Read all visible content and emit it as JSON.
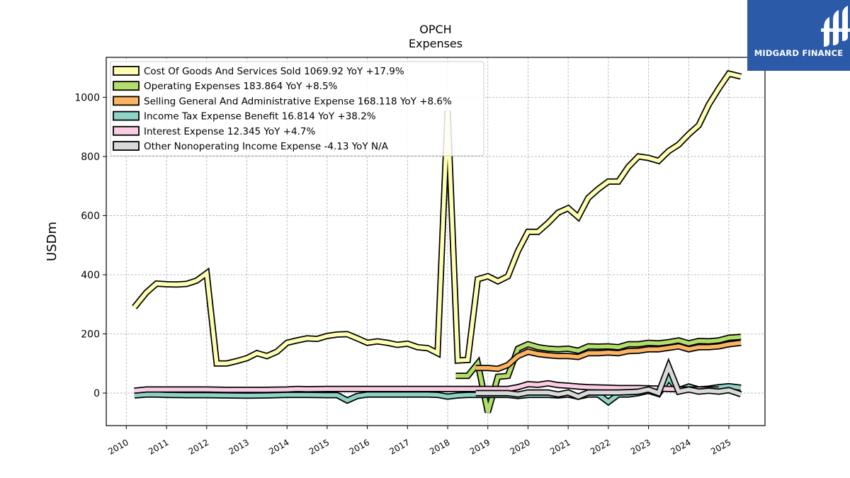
{
  "brand": {
    "name": "MIDGARD FINANCE",
    "color": "#2b5aa8"
  },
  "chart_data": {
    "type": "line",
    "title": "OPCH",
    "subtitle": "Expenses",
    "ylabel": "USDm",
    "xlabel": "",
    "xlim": [
      2009.5,
      2025.9
    ],
    "ylim": [
      -110,
      1135
    ],
    "x_ticks": [
      2010,
      2011,
      2012,
      2013,
      2014,
      2015,
      2016,
      2017,
      2018,
      2019,
      2020,
      2021,
      2022,
      2023,
      2024,
      2025
    ],
    "x_tick_labels": [
      "2010",
      "2011",
      "2012",
      "2013",
      "2014",
      "2015",
      "2016",
      "2017",
      "2018",
      "2019",
      "2020",
      "2021",
      "2022",
      "2023",
      "2024",
      "2025"
    ],
    "y_ticks": [
      0,
      200,
      400,
      600,
      800,
      1000
    ],
    "y_tick_labels": [
      "0",
      "200",
      "400",
      "600",
      "800",
      "1000"
    ],
    "grid": true,
    "legend_position": "top-left",
    "series": [
      {
        "name": "Cost Of Goods And Services Sold",
        "legend": "Cost Of Goods And Services Sold  1069.92 YoY +17.9%",
        "color": "#ffffb3",
        "points": [
          [
            2010.2,
            290
          ],
          [
            2010.5,
            340
          ],
          [
            2010.75,
            370
          ],
          [
            2011.0,
            368
          ],
          [
            2011.25,
            367
          ],
          [
            2011.5,
            369
          ],
          [
            2011.75,
            380
          ],
          [
            2012.0,
            405
          ],
          [
            2012.25,
            100
          ],
          [
            2012.5,
            100
          ],
          [
            2012.75,
            108
          ],
          [
            2013.0,
            118
          ],
          [
            2013.25,
            135
          ],
          [
            2013.5,
            125
          ],
          [
            2013.75,
            140
          ],
          [
            2014.0,
            170
          ],
          [
            2014.25,
            178
          ],
          [
            2014.5,
            185
          ],
          [
            2014.75,
            183
          ],
          [
            2015.0,
            193
          ],
          [
            2015.25,
            198
          ],
          [
            2015.5,
            199
          ],
          [
            2015.75,
            185
          ],
          [
            2016.0,
            170
          ],
          [
            2016.25,
            175
          ],
          [
            2016.5,
            170
          ],
          [
            2016.75,
            163
          ],
          [
            2017.0,
            167
          ],
          [
            2017.25,
            155
          ],
          [
            2017.5,
            152
          ],
          [
            2017.75,
            135
          ],
          [
            2018.0,
            955
          ],
          [
            2018.25,
            110
          ],
          [
            2018.5,
            112
          ],
          [
            2018.75,
            385
          ],
          [
            2019.0,
            395
          ],
          [
            2019.25,
            378
          ],
          [
            2019.5,
            395
          ],
          [
            2019.75,
            480
          ],
          [
            2020.0,
            545
          ],
          [
            2020.25,
            545
          ],
          [
            2020.5,
            575
          ],
          [
            2020.75,
            610
          ],
          [
            2021.0,
            625
          ],
          [
            2021.25,
            595
          ],
          [
            2021.5,
            660
          ],
          [
            2021.75,
            690
          ],
          [
            2022.0,
            715
          ],
          [
            2022.25,
            715
          ],
          [
            2022.5,
            765
          ],
          [
            2022.75,
            800
          ],
          [
            2023.0,
            795
          ],
          [
            2023.25,
            785
          ],
          [
            2023.5,
            818
          ],
          [
            2023.75,
            840
          ],
          [
            2024.0,
            875
          ],
          [
            2024.25,
            905
          ],
          [
            2024.5,
            975
          ],
          [
            2024.75,
            1030
          ],
          [
            2025.0,
            1080
          ],
          [
            2025.3,
            1070
          ]
        ]
      },
      {
        "name": "Operating Expenses",
        "legend": "Operating Expenses  183.864 YoY +8.5%",
        "color": "#b3de69",
        "points": [
          [
            2018.2,
            58
          ],
          [
            2018.5,
            58
          ],
          [
            2018.75,
            100
          ],
          [
            2019.0,
            -65
          ],
          [
            2019.25,
            55
          ],
          [
            2019.5,
            58
          ],
          [
            2019.75,
            150
          ],
          [
            2020.0,
            165
          ],
          [
            2020.25,
            155
          ],
          [
            2020.5,
            150
          ],
          [
            2020.75,
            148
          ],
          [
            2021.0,
            150
          ],
          [
            2021.25,
            143
          ],
          [
            2021.5,
            158
          ],
          [
            2021.75,
            157
          ],
          [
            2022.0,
            158
          ],
          [
            2022.25,
            155
          ],
          [
            2022.5,
            165
          ],
          [
            2022.75,
            165
          ],
          [
            2023.0,
            170
          ],
          [
            2023.25,
            168
          ],
          [
            2023.5,
            172
          ],
          [
            2023.75,
            178
          ],
          [
            2024.0,
            168
          ],
          [
            2024.25,
            176
          ],
          [
            2024.5,
            175
          ],
          [
            2024.75,
            178
          ],
          [
            2025.0,
            187
          ],
          [
            2025.3,
            190
          ]
        ]
      },
      {
        "name": "Selling General And Administrative Expense",
        "legend": "Selling General And Administrative Expense  168.118 YoY +8.6%",
        "color": "#fdb462",
        "points": [
          [
            2018.7,
            85
          ],
          [
            2019.0,
            85
          ],
          [
            2019.25,
            82
          ],
          [
            2019.5,
            95
          ],
          [
            2019.75,
            125
          ],
          [
            2020.0,
            140
          ],
          [
            2020.25,
            132
          ],
          [
            2020.5,
            128
          ],
          [
            2020.75,
            125
          ],
          [
            2021.0,
            125
          ],
          [
            2021.25,
            122
          ],
          [
            2021.5,
            135
          ],
          [
            2021.75,
            135
          ],
          [
            2022.0,
            137
          ],
          [
            2022.25,
            135
          ],
          [
            2022.5,
            142
          ],
          [
            2022.75,
            143
          ],
          [
            2023.0,
            148
          ],
          [
            2023.25,
            148
          ],
          [
            2023.5,
            153
          ],
          [
            2023.75,
            158
          ],
          [
            2024.0,
            148
          ],
          [
            2024.25,
            155
          ],
          [
            2024.5,
            155
          ],
          [
            2024.75,
            158
          ],
          [
            2025.0,
            165
          ],
          [
            2025.3,
            170
          ]
        ]
      },
      {
        "name": "Income Tax Expense Benefit",
        "legend": "Income Tax Expense Benefit  16.814 YoY +38.2%",
        "color": "#8dd3c7",
        "points": [
          [
            2010.2,
            -8
          ],
          [
            2010.5,
            -5
          ],
          [
            2010.75,
            -5
          ],
          [
            2011.0,
            -6
          ],
          [
            2011.5,
            -7
          ],
          [
            2012.0,
            -7
          ],
          [
            2012.5,
            -8
          ],
          [
            2013.0,
            -9
          ],
          [
            2013.5,
            -8
          ],
          [
            2014.0,
            -6
          ],
          [
            2014.5,
            -6
          ],
          [
            2015.0,
            -7
          ],
          [
            2015.25,
            -7
          ],
          [
            2015.5,
            -25
          ],
          [
            2015.75,
            -10
          ],
          [
            2016.0,
            -5
          ],
          [
            2016.5,
            -5
          ],
          [
            2017.0,
            -5
          ],
          [
            2017.5,
            -5
          ],
          [
            2017.75,
            -6
          ],
          [
            2018.0,
            -12
          ],
          [
            2018.25,
            -8
          ],
          [
            2018.5,
            -6
          ],
          [
            2019.0,
            -6
          ],
          [
            2019.5,
            -6
          ],
          [
            2019.75,
            -10
          ],
          [
            2020.0,
            -6
          ],
          [
            2020.5,
            -6
          ],
          [
            2020.75,
            -8
          ],
          [
            2021.0,
            -5
          ],
          [
            2021.25,
            -12
          ],
          [
            2021.5,
            -5
          ],
          [
            2021.75,
            -5
          ],
          [
            2022.0,
            -30
          ],
          [
            2022.25,
            -5
          ],
          [
            2022.5,
            -5
          ],
          [
            2022.75,
            0
          ],
          [
            2023.0,
            8
          ],
          [
            2023.25,
            -3
          ],
          [
            2023.5,
            50
          ],
          [
            2023.75,
            10
          ],
          [
            2024.0,
            22
          ],
          [
            2024.25,
            12
          ],
          [
            2024.5,
            15
          ],
          [
            2024.75,
            20
          ],
          [
            2025.0,
            23
          ],
          [
            2025.3,
            18
          ]
        ]
      },
      {
        "name": "Interest Expense",
        "legend": "Interest Expense  12.345 YoY +4.7%",
        "color": "#fccde5",
        "points": [
          [
            2010.2,
            8
          ],
          [
            2010.5,
            12
          ],
          [
            2011.0,
            12
          ],
          [
            2011.5,
            12
          ],
          [
            2012.0,
            12
          ],
          [
            2012.5,
            11
          ],
          [
            2013.0,
            11
          ],
          [
            2013.5,
            11
          ],
          [
            2014.0,
            12
          ],
          [
            2014.25,
            14
          ],
          [
            2014.5,
            13
          ],
          [
            2015.0,
            14
          ],
          [
            2015.5,
            14
          ],
          [
            2016.0,
            14
          ],
          [
            2016.5,
            14
          ],
          [
            2017.0,
            14
          ],
          [
            2017.5,
            14
          ],
          [
            2018.0,
            14
          ],
          [
            2018.5,
            14
          ],
          [
            2019.0,
            14
          ],
          [
            2019.5,
            14
          ],
          [
            2019.75,
            20
          ],
          [
            2020.0,
            30
          ],
          [
            2020.25,
            28
          ],
          [
            2020.5,
            33
          ],
          [
            2020.75,
            27
          ],
          [
            2021.0,
            25
          ],
          [
            2021.25,
            22
          ],
          [
            2021.5,
            20
          ],
          [
            2021.75,
            19
          ],
          [
            2022.0,
            18
          ],
          [
            2022.25,
            17
          ],
          [
            2022.5,
            17
          ],
          [
            2022.75,
            17
          ],
          [
            2023.0,
            16
          ],
          [
            2023.25,
            15
          ],
          [
            2023.5,
            14
          ],
          [
            2023.75,
            13
          ],
          [
            2024.0,
            12
          ],
          [
            2024.25,
            12
          ],
          [
            2024.5,
            12
          ],
          [
            2024.75,
            12
          ]
        ]
      },
      {
        "name": "Other Nonoperating Income Expense",
        "legend": "Other Nonoperating Income Expense  -4.13 YoY N/A",
        "color": "#d9d9d9",
        "points": [
          [
            2018.7,
            0
          ],
          [
            2019.0,
            0
          ],
          [
            2019.25,
            0
          ],
          [
            2019.5,
            0
          ],
          [
            2019.75,
            -5
          ],
          [
            2020.0,
            2
          ],
          [
            2020.25,
            2
          ],
          [
            2020.5,
            2
          ],
          [
            2020.75,
            -5
          ],
          [
            2021.0,
            2
          ],
          [
            2021.25,
            -12
          ],
          [
            2021.5,
            2
          ],
          [
            2021.75,
            2
          ],
          [
            2022.0,
            2
          ],
          [
            2022.25,
            2
          ],
          [
            2022.5,
            3
          ],
          [
            2022.75,
            5
          ],
          [
            2023.0,
            12
          ],
          [
            2023.25,
            0
          ],
          [
            2023.5,
            90
          ],
          [
            2023.75,
            5
          ],
          [
            2024.0,
            12
          ],
          [
            2024.25,
            5
          ],
          [
            2024.5,
            8
          ],
          [
            2024.75,
            5
          ],
          [
            2025.0,
            10
          ],
          [
            2025.3,
            -4
          ]
        ]
      }
    ]
  }
}
